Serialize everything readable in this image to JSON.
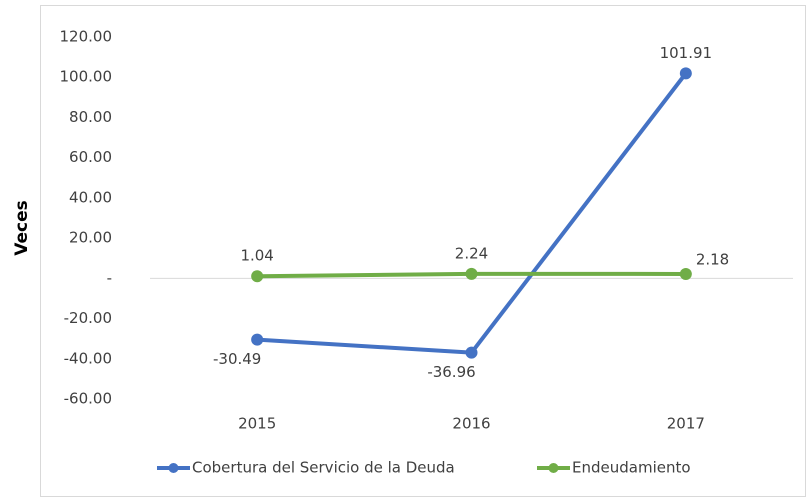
{
  "chart_data": {
    "type": "line",
    "y_axis_label": "Veces",
    "categories": [
      "2015",
      "2016",
      "2017"
    ],
    "series": [
      {
        "name": "Cobertura del Servicio de la Deuda",
        "color": "#4472c4",
        "values": [
          -30.49,
          -36.96,
          101.91
        ]
      },
      {
        "name": "Endeudamiento",
        "color": "#70ad47",
        "values": [
          1.04,
          2.24,
          2.18
        ]
      }
    ],
    "ylim": [
      -60,
      120
    ],
    "yticks": [
      {
        "value": 120,
        "label": "120.00"
      },
      {
        "value": 100,
        "label": "100.00"
      },
      {
        "value": 80,
        "label": "80.00"
      },
      {
        "value": 60,
        "label": "60.00"
      },
      {
        "value": 40,
        "label": "40.00"
      },
      {
        "value": 20,
        "label": "20.00"
      },
      {
        "value": 0,
        "label": "-"
      },
      {
        "value": -20,
        "label": "-20.00"
      },
      {
        "value": -40,
        "label": "-40.00"
      },
      {
        "value": -60,
        "label": "-60.00"
      }
    ],
    "legend": "bottom"
  }
}
